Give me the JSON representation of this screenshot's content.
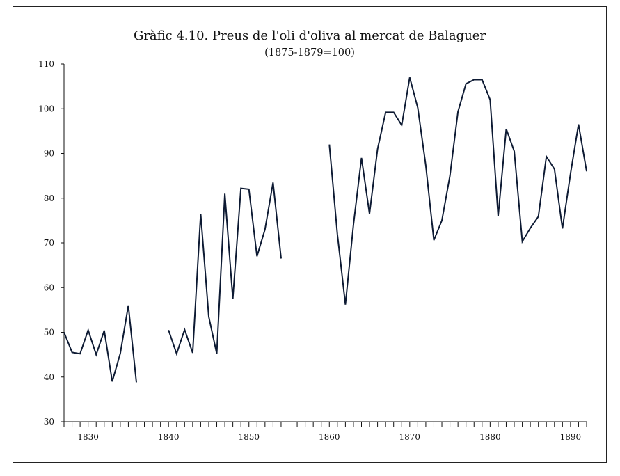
{
  "chart_data": {
    "type": "line",
    "title": "Gràfic 4.10. Preus de l'oli d'oliva al mercat de Balaguer",
    "subtitle": "(1875-1879=100)",
    "xlabel": "",
    "ylabel": "",
    "xlim": [
      1827,
      1892
    ],
    "ylim": [
      30,
      110
    ],
    "x_ticks": [
      1830,
      1840,
      1850,
      1860,
      1870,
      1880,
      1890
    ],
    "y_ticks": [
      30,
      40,
      50,
      60,
      70,
      80,
      90,
      100,
      110
    ],
    "grid": false,
    "legend": "none",
    "line_color": "#0d1a33",
    "series": [
      {
        "segments": [
          [
            [
              1827,
              50
            ],
            [
              1828,
              45.5
            ],
            [
              1829,
              45.2
            ],
            [
              1830,
              50.5
            ],
            [
              1831,
              45
            ],
            [
              1832,
              50.4
            ],
            [
              1833,
              39
            ],
            [
              1834,
              45.3
            ],
            [
              1835,
              56
            ],
            [
              1836,
              38.8
            ]
          ],
          [
            [
              1840,
              50.5
            ],
            [
              1841,
              45.2
            ],
            [
              1842,
              50.6
            ],
            [
              1843,
              45.4
            ],
            [
              1844,
              76.5
            ],
            [
              1845,
              53.5
            ],
            [
              1846,
              45.2
            ],
            [
              1847,
              81
            ],
            [
              1848,
              57.5
            ],
            [
              1849,
              82.2
            ],
            [
              1850,
              82
            ],
            [
              1851,
              67
            ],
            [
              1852,
              73
            ],
            [
              1853,
              83.5
            ],
            [
              1854,
              66.5
            ]
          ],
          [
            [
              1860,
              92
            ],
            [
              1861,
              72
            ],
            [
              1862,
              56.2
            ],
            [
              1863,
              74
            ],
            [
              1864,
              89
            ],
            [
              1865,
              76.5
            ],
            [
              1866,
              91
            ],
            [
              1867,
              99.2
            ],
            [
              1868,
              99.2
            ],
            [
              1869,
              96.3
            ],
            [
              1870,
              107
            ],
            [
              1871,
              100.2
            ],
            [
              1872,
              87.3
            ],
            [
              1873,
              70.6
            ],
            [
              1874,
              75
            ],
            [
              1875,
              85
            ],
            [
              1876,
              99.3
            ],
            [
              1877,
              105.6
            ],
            [
              1878,
              106.5
            ],
            [
              1879,
              106.5
            ],
            [
              1880,
              102
            ],
            [
              1881,
              76
            ],
            [
              1882,
              95.5
            ],
            [
              1883,
              90.5
            ],
            [
              1884,
              70.3
            ],
            [
              1885,
              73.3
            ],
            [
              1886,
              75.9
            ],
            [
              1887,
              89.3
            ],
            [
              1888,
              86.5
            ],
            [
              1889,
              73.2
            ],
            [
              1890,
              85.5
            ],
            [
              1891,
              96.5
            ],
            [
              1892,
              86
            ]
          ]
        ]
      }
    ]
  }
}
